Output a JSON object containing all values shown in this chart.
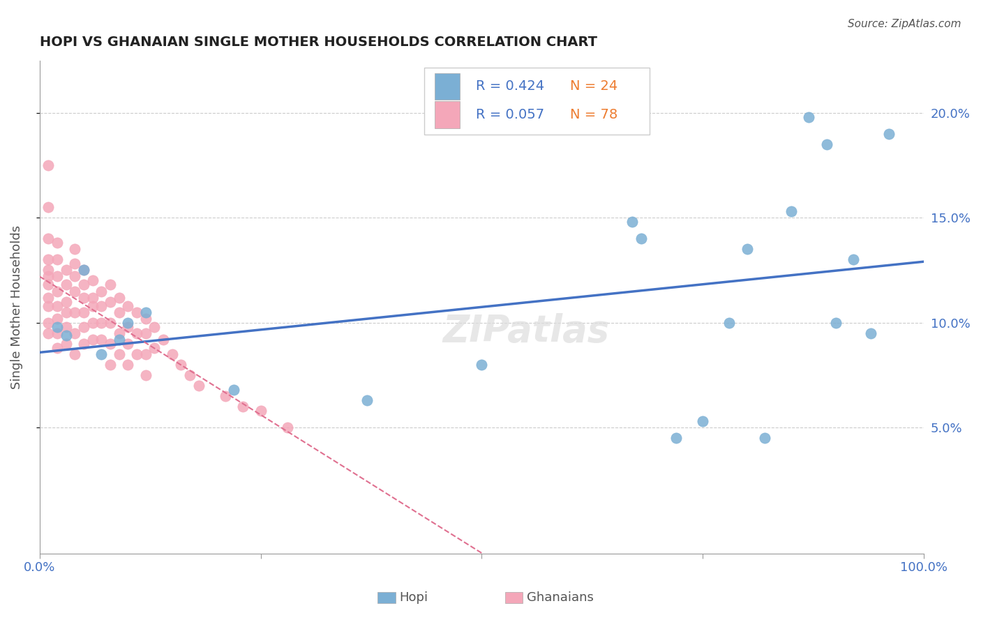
{
  "title": "HOPI VS GHANAIAN SINGLE MOTHER HOUSEHOLDS CORRELATION CHART",
  "source": "Source: ZipAtlas.com",
  "ylabel_label": "Single Mother Households",
  "y_tick_labels": [
    "5.0%",
    "10.0%",
    "15.0%",
    "20.0%"
  ],
  "y_ticks": [
    0.05,
    0.1,
    0.15,
    0.2
  ],
  "xlim": [
    0.0,
    1.0
  ],
  "ylim": [
    -0.01,
    0.225
  ],
  "hopi_color": "#7bafd4",
  "ghanaian_color": "#f4a7b9",
  "hopi_R": 0.424,
  "hopi_N": 24,
  "ghanaian_R": 0.057,
  "ghanaian_N": 78,
  "legend_R_color": "#4472c4",
  "legend_N_color": "#ed7d31",
  "watermark": "ZIPatlas",
  "hopi_x": [
    0.02,
    0.03,
    0.05,
    0.07,
    0.09,
    0.1,
    0.12,
    0.22,
    0.37,
    0.5,
    0.67,
    0.68,
    0.72,
    0.75,
    0.78,
    0.8,
    0.82,
    0.85,
    0.87,
    0.89,
    0.9,
    0.92,
    0.94,
    0.96
  ],
  "hopi_y": [
    0.098,
    0.094,
    0.125,
    0.085,
    0.092,
    0.1,
    0.105,
    0.068,
    0.063,
    0.08,
    0.148,
    0.14,
    0.045,
    0.053,
    0.1,
    0.135,
    0.045,
    0.153,
    0.198,
    0.185,
    0.1,
    0.13,
    0.095,
    0.19
  ],
  "ghanaian_x": [
    0.01,
    0.01,
    0.01,
    0.01,
    0.01,
    0.01,
    0.01,
    0.01,
    0.01,
    0.01,
    0.01,
    0.02,
    0.02,
    0.02,
    0.02,
    0.02,
    0.02,
    0.02,
    0.02,
    0.03,
    0.03,
    0.03,
    0.03,
    0.03,
    0.03,
    0.04,
    0.04,
    0.04,
    0.04,
    0.04,
    0.04,
    0.04,
    0.05,
    0.05,
    0.05,
    0.05,
    0.05,
    0.05,
    0.06,
    0.06,
    0.06,
    0.06,
    0.06,
    0.07,
    0.07,
    0.07,
    0.07,
    0.08,
    0.08,
    0.08,
    0.08,
    0.08,
    0.09,
    0.09,
    0.09,
    0.09,
    0.1,
    0.1,
    0.1,
    0.1,
    0.11,
    0.11,
    0.11,
    0.12,
    0.12,
    0.12,
    0.12,
    0.13,
    0.13,
    0.14,
    0.15,
    0.16,
    0.17,
    0.18,
    0.21,
    0.23,
    0.25,
    0.28
  ],
  "ghanaian_y": [
    0.175,
    0.155,
    0.14,
    0.13,
    0.125,
    0.122,
    0.118,
    0.112,
    0.108,
    0.1,
    0.095,
    0.138,
    0.13,
    0.122,
    0.115,
    0.108,
    0.102,
    0.095,
    0.088,
    0.125,
    0.118,
    0.11,
    0.105,
    0.098,
    0.09,
    0.135,
    0.128,
    0.122,
    0.115,
    0.105,
    0.095,
    0.085,
    0.125,
    0.118,
    0.112,
    0.105,
    0.098,
    0.09,
    0.12,
    0.112,
    0.108,
    0.1,
    0.092,
    0.115,
    0.108,
    0.1,
    0.092,
    0.118,
    0.11,
    0.1,
    0.09,
    0.08,
    0.112,
    0.105,
    0.095,
    0.085,
    0.108,
    0.098,
    0.09,
    0.08,
    0.105,
    0.095,
    0.085,
    0.102,
    0.095,
    0.085,
    0.075,
    0.098,
    0.088,
    0.092,
    0.085,
    0.08,
    0.075,
    0.07,
    0.065,
    0.06,
    0.058,
    0.05
  ]
}
